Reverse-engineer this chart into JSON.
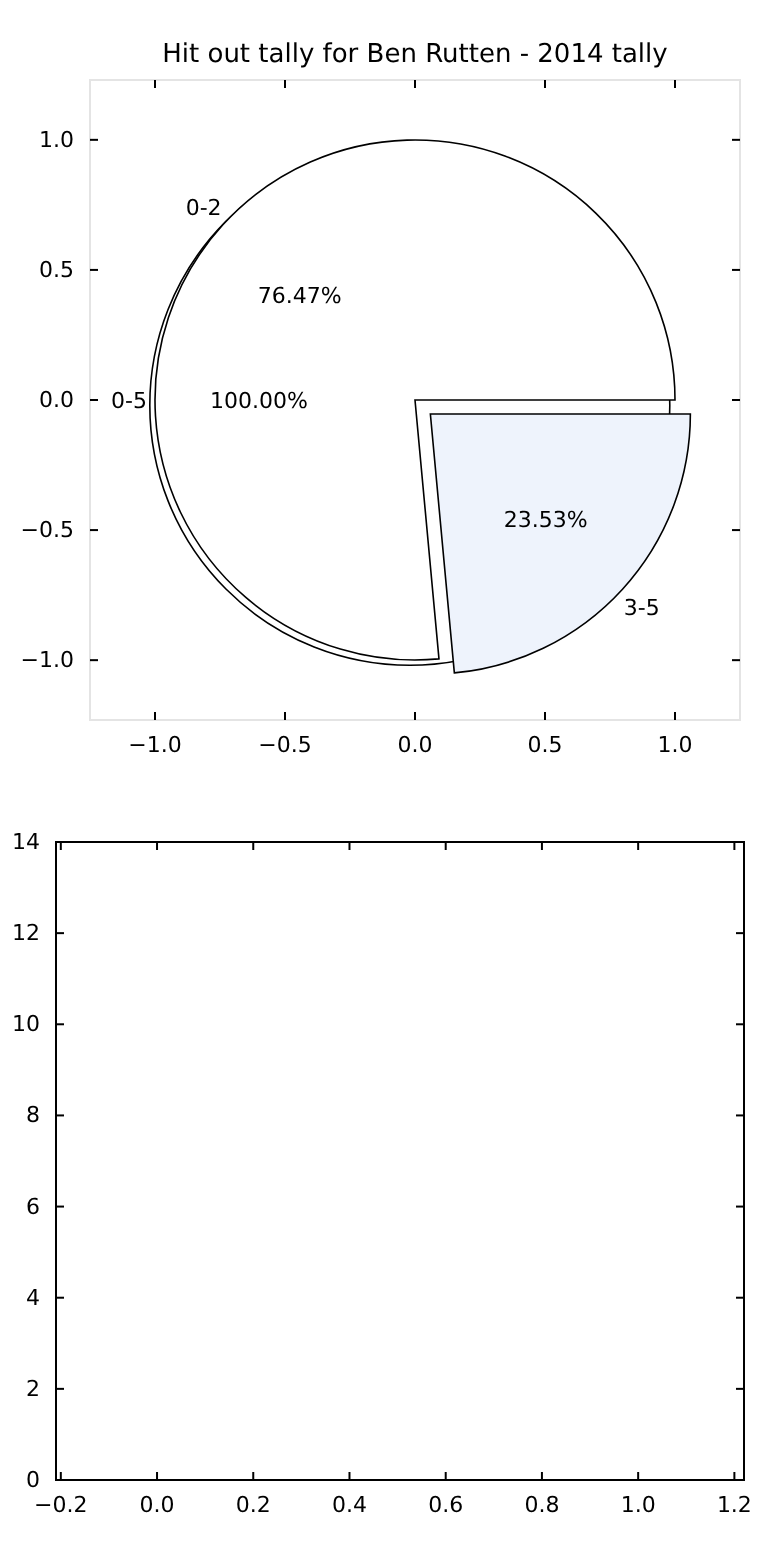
{
  "chart_data": [
    {
      "type": "scatter",
      "title": "Hit out tally for Ben Rutten - 2014 tally",
      "xlim": [
        -1.25,
        1.25
      ],
      "ylim": [
        -1.23,
        1.23
      ],
      "xticks": [
        {
          "value": -1,
          "label": "−1.0"
        },
        {
          "value": -0.5,
          "label": "−0.5"
        },
        {
          "value": 0,
          "label": "0.0"
        },
        {
          "value": 0.5,
          "label": "0.5"
        },
        {
          "value": 1,
          "label": "1.0"
        }
      ],
      "yticks": [
        {
          "value": -1,
          "label": "−1.0"
        },
        {
          "value": -0.5,
          "label": "−0.5"
        },
        {
          "value": 0,
          "label": "0.0"
        },
        {
          "value": 0.5,
          "label": "0.5"
        },
        {
          "value": 1,
          "label": "1.0"
        }
      ]
    },
    {
      "type": "pie",
      "categories": [
        "0-5"
      ],
      "values": [
        100
      ],
      "colors": [
        "#ffffff"
      ],
      "value_labels": [
        "100.00%"
      ]
    },
    {
      "type": "pie",
      "categories": [
        "0-2",
        "3-5"
      ],
      "values": [
        76.47,
        23.53
      ],
      "colors": [
        "#ffffff",
        "#eef3fc"
      ],
      "value_labels": [
        "76.47%",
        "23.53%"
      ]
    },
    {
      "type": "scatter",
      "xlim": [
        -0.21,
        1.22
      ],
      "ylim": [
        0,
        14
      ],
      "xticks": [
        {
          "value": -0.2,
          "label": "−0.2"
        },
        {
          "value": 0,
          "label": "0.0"
        },
        {
          "value": 0.2,
          "label": "0.2"
        },
        {
          "value": 0.4,
          "label": "0.4"
        },
        {
          "value": 0.6,
          "label": "0.6"
        },
        {
          "value": 0.8,
          "label": "0.8"
        },
        {
          "value": 1,
          "label": "1.0"
        },
        {
          "value": 1.2,
          "label": "1.2"
        }
      ],
      "yticks": [
        0,
        2,
        4,
        6,
        8,
        10,
        12,
        14
      ]
    }
  ]
}
